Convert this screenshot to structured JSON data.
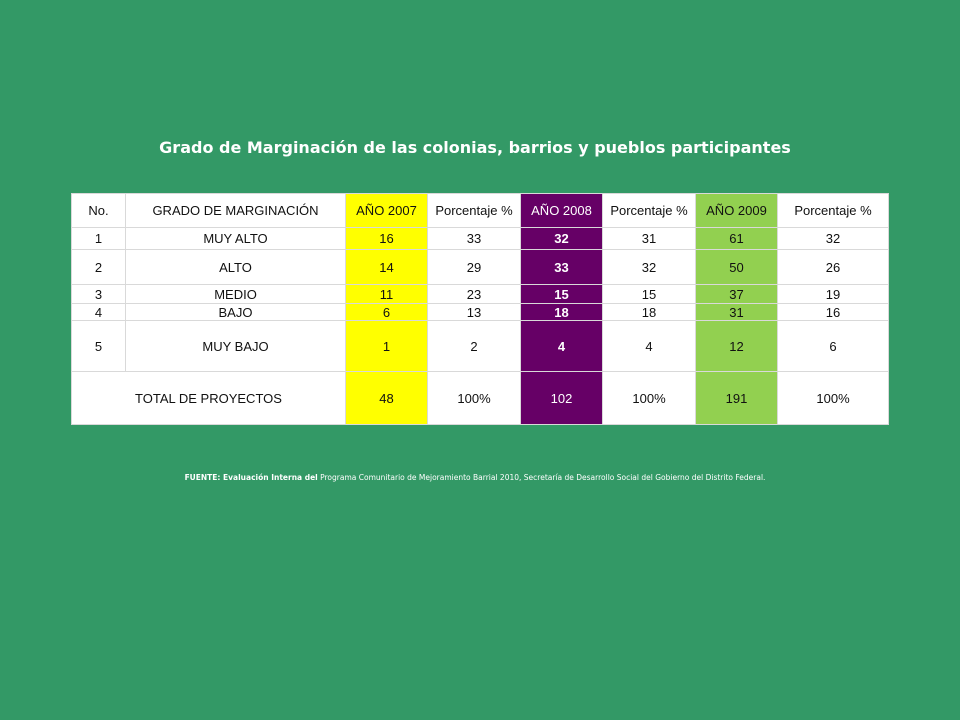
{
  "title": "Grado de Marginación de las colonias, barrios y pueblos participantes",
  "colors": {
    "background": "#339966",
    "year_2007": "#ffff00",
    "year_2008": "#660066",
    "year_2009": "#92d050"
  },
  "table": {
    "headers": [
      "No.",
      "GRADO DE MARGINACIÓN",
      "AÑO 2007",
      "Porcentaje %",
      "AÑO 2008",
      "Porcentaje %",
      "AÑO 2009",
      "Porcentaje %"
    ],
    "rows": [
      {
        "no": "1",
        "grado": "MUY ALTO",
        "y2007": "16",
        "p2007": "33",
        "y2008": "32",
        "p2008": "31",
        "y2009": "61",
        "p2009": "32"
      },
      {
        "no": "2",
        "grado": "ALTO",
        "y2007": "14",
        "p2007": "29",
        "y2008": "33",
        "p2008": "32",
        "y2009": "50",
        "p2009": "26"
      },
      {
        "no": "3",
        "grado": "MEDIO",
        "y2007": "11",
        "p2007": "23",
        "y2008": "15",
        "p2008": "15",
        "y2009": "37",
        "p2009": "19"
      },
      {
        "no": "4",
        "grado": "BAJO",
        "y2007": "6",
        "p2007": "13",
        "y2008": "18",
        "p2008": "18",
        "y2009": "31",
        "p2009": "16"
      },
      {
        "no": "5",
        "grado": "MUY BAJO",
        "y2007": "1",
        "p2007": "2",
        "y2008": "4",
        "p2008": "4",
        "y2009": "12",
        "p2009": "6"
      }
    ],
    "total": {
      "label": "TOTAL DE PROYECTOS",
      "y2007": "48",
      "p2007": "100%",
      "y2008": "102",
      "p2008": "100%",
      "y2009": "191",
      "p2009": "100%"
    }
  },
  "footnote": {
    "bold": "FUENTE: Evaluación Interna del",
    "text": " Programa Comunitario de Mejoramiento Barrial 2010, Secretaría de Desarrollo Social del Gobierno del Distrito Federal."
  }
}
